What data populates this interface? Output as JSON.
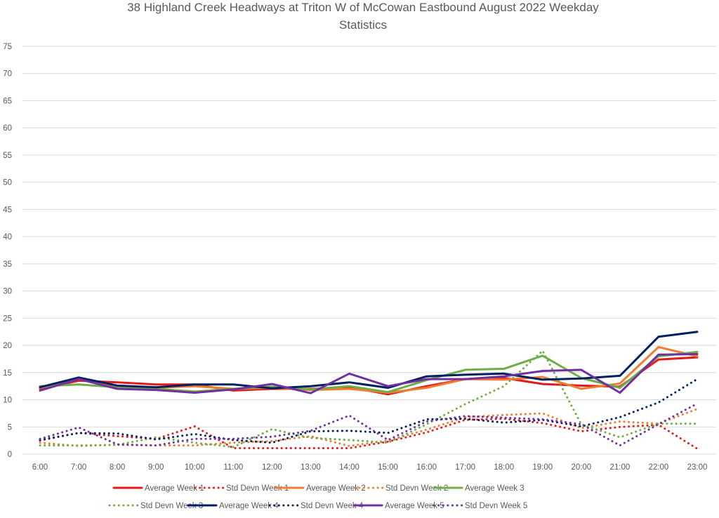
{
  "chart_data": {
    "type": "line",
    "title": "38 Highland Creek Headways at Triton W of McCowan Eastbound August 2022 Weekday",
    "title_line2": "Statistics",
    "xlabel": "",
    "ylabel": "",
    "ylim": [
      0,
      75
    ],
    "yticks": [
      0,
      5,
      10,
      15,
      20,
      25,
      30,
      35,
      40,
      45,
      50,
      55,
      60,
      65,
      70,
      75
    ],
    "grid": true,
    "legend_position": "bottom",
    "categories": [
      "6:00",
      "7:00",
      "8:00",
      "9:00",
      "10:00",
      "11:00",
      "12:00",
      "13:00",
      "14:00",
      "15:00",
      "16:00",
      "17:00",
      "18:00",
      "19:00",
      "20:00",
      "21:00",
      "22:00",
      "23:00"
    ],
    "series": [
      {
        "name": "Average Week 1",
        "color": "#e31a1c",
        "style": "solid",
        "values": [
          12.0,
          13.5,
          13.2,
          12.8,
          12.8,
          11.7,
          12.0,
          12.0,
          12.3,
          11.0,
          12.5,
          13.8,
          14.0,
          12.9,
          12.6,
          12.4,
          17.4,
          17.8
        ]
      },
      {
        "name": "Std Devn Week 1",
        "color": "#e31a1c",
        "style": "dotted",
        "values": [
          2.5,
          3.9,
          3.3,
          2.8,
          5.1,
          1.1,
          1.1,
          1.1,
          1.1,
          2.3,
          4.0,
          6.3,
          6.5,
          5.7,
          4.2,
          5.0,
          5.4,
          1.0
        ]
      },
      {
        "name": "Average Week 2",
        "color": "#ed7d31",
        "style": "solid",
        "values": [
          12.2,
          13.8,
          12.3,
          12.2,
          12.5,
          12.0,
          12.2,
          11.8,
          12.0,
          11.3,
          12.2,
          13.8,
          13.7,
          14.2,
          12.0,
          13.0,
          19.7,
          18.0
        ]
      },
      {
        "name": "Std Devn Week 2",
        "color": "#ed7d31",
        "style": "dotted",
        "values": [
          2.1,
          1.5,
          1.7,
          1.6,
          1.6,
          2.1,
          2.4,
          3.3,
          1.5,
          2.5,
          4.5,
          6.8,
          7.2,
          7.5,
          4.8,
          6.0,
          5.6,
          8.3
        ]
      },
      {
        "name": "Average Week 3",
        "color": "#70ad47",
        "style": "solid",
        "values": [
          12.5,
          12.8,
          12.3,
          12.0,
          11.5,
          12.0,
          12.4,
          11.9,
          12.5,
          11.4,
          13.6,
          15.5,
          15.7,
          18.1,
          14.0,
          12.2,
          18.0,
          18.8
        ]
      },
      {
        "name": "Std Devn Week 3",
        "color": "#70ad47",
        "style": "dotted",
        "values": [
          1.6,
          1.6,
          1.7,
          3.1,
          2.1,
          1.3,
          4.6,
          3.0,
          2.6,
          2.1,
          5.5,
          9.2,
          12.5,
          19.0,
          5.5,
          3.1,
          5.6,
          5.6
        ]
      },
      {
        "name": "Average Week 4",
        "color": "#002060",
        "style": "solid",
        "values": [
          12.3,
          14.1,
          12.6,
          12.3,
          12.8,
          12.8,
          12.1,
          12.5,
          13.2,
          12.2,
          14.3,
          14.6,
          14.8,
          13.7,
          13.9,
          14.4,
          21.6,
          22.5
        ]
      },
      {
        "name": "Std Devn Week 4",
        "color": "#002060",
        "style": "dotted",
        "values": [
          2.6,
          3.9,
          3.8,
          2.7,
          3.7,
          2.6,
          2.1,
          4.2,
          4.3,
          3.9,
          6.4,
          6.5,
          5.8,
          6.3,
          5.1,
          6.8,
          9.5,
          13.8
        ]
      },
      {
        "name": "Average Week 5",
        "color": "#7030a0",
        "style": "solid",
        "values": [
          11.7,
          13.8,
          12.0,
          11.8,
          11.3,
          11.9,
          12.9,
          11.2,
          14.8,
          12.5,
          13.8,
          13.8,
          14.3,
          15.3,
          15.5,
          11.3,
          18.3,
          18.4
        ]
      },
      {
        "name": "Std Devn Week 5",
        "color": "#7030a0",
        "style": "dotted",
        "values": [
          2.8,
          4.9,
          1.8,
          1.6,
          2.8,
          2.8,
          3.2,
          4.3,
          7.1,
          2.6,
          6.0,
          7.0,
          6.7,
          6.4,
          5.5,
          1.6,
          5.5,
          9.3
        ]
      }
    ]
  }
}
